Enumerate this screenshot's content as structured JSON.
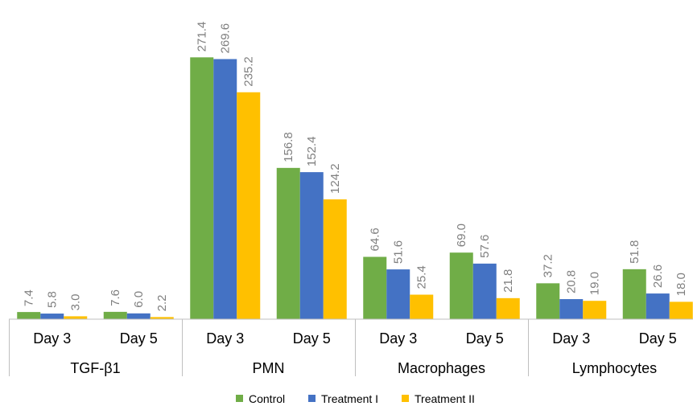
{
  "chart_data": {
    "type": "bar",
    "ylim": [
      0,
      300
    ],
    "grid": false,
    "legend_position": "bottom",
    "groups": [
      {
        "label": "TGF-β1",
        "categories": [
          "Day 3",
          "Day 5"
        ],
        "series": [
          {
            "name": "Control",
            "values": [
              7.4,
              7.6
            ],
            "labels": [
              "7.4",
              "7.6"
            ]
          },
          {
            "name": "Treatment I",
            "values": [
              5.8,
              6.0
            ],
            "labels": [
              "5.8",
              "6.0"
            ]
          },
          {
            "name": "Treatment II",
            "values": [
              3.0,
              2.2
            ],
            "labels": [
              "3.0",
              "2.2"
            ]
          }
        ]
      },
      {
        "label": "PMN",
        "categories": [
          "Day 3",
          "Day 5"
        ],
        "series": [
          {
            "name": "Control",
            "values": [
              271.4,
              156.8
            ],
            "labels": [
              "271.4",
              "156.8"
            ]
          },
          {
            "name": "Treatment I",
            "values": [
              269.6,
              152.4
            ],
            "labels": [
              "269.6",
              "152.4"
            ]
          },
          {
            "name": "Treatment II",
            "values": [
              235.2,
              124.2
            ],
            "labels": [
              "235.2",
              "124.2"
            ]
          }
        ]
      },
      {
        "label": "Macrophages",
        "categories": [
          "Day 3",
          "Day 5"
        ],
        "series": [
          {
            "name": "Control",
            "values": [
              64.6,
              69.0
            ],
            "labels": [
              "64.6",
              "69.0"
            ]
          },
          {
            "name": "Treatment I",
            "values": [
              51.6,
              57.6
            ],
            "labels": [
              "51.6",
              "57.6"
            ]
          },
          {
            "name": "Treatment II",
            "values": [
              25.4,
              21.8
            ],
            "labels": [
              "25.4",
              "21.8"
            ]
          }
        ]
      },
      {
        "label": "Lymphocytes",
        "categories": [
          "Day 3",
          "Day 5"
        ],
        "series": [
          {
            "name": "Control",
            "values": [
              37.2,
              51.8
            ],
            "labels": [
              "37.2",
              "51.8"
            ]
          },
          {
            "name": "Treatment I",
            "values": [
              20.8,
              26.6
            ],
            "labels": [
              "20.8",
              "26.6"
            ]
          },
          {
            "name": "Treatment II",
            "values": [
              19.0,
              18.0
            ],
            "labels": [
              "19.0",
              "18.0"
            ]
          }
        ]
      }
    ],
    "legend": [
      "Control",
      "Treatment I",
      "Treatment II"
    ],
    "colors": {
      "Control": "#70ad47",
      "Treatment I": "#4472c4",
      "Treatment II": "#ffc000"
    }
  }
}
